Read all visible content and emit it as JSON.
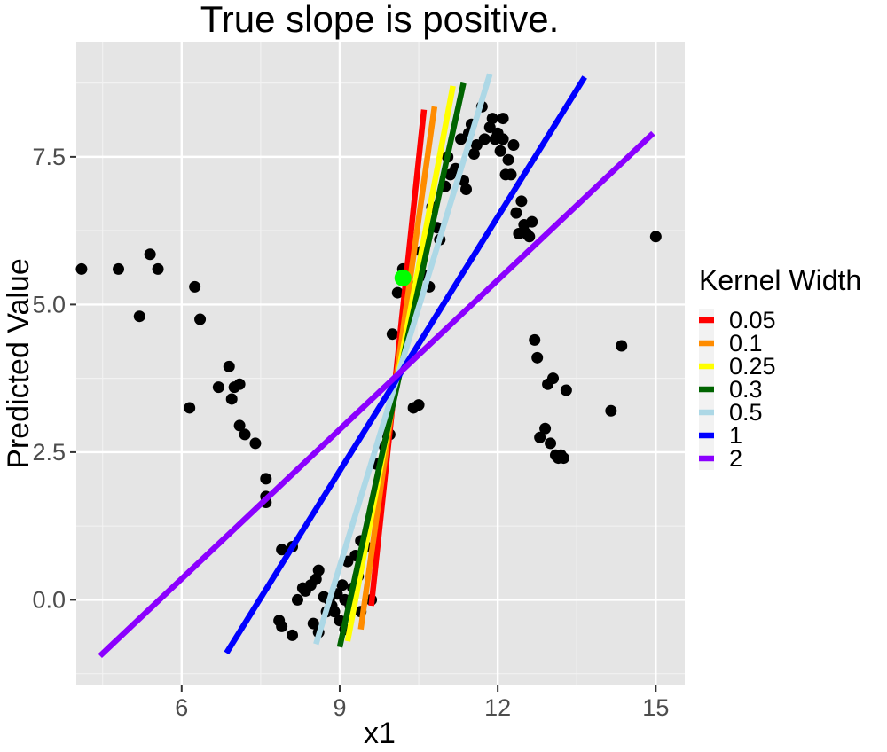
{
  "chart_data": {
    "type": "scatter",
    "title": "True slope is positive.",
    "xlabel": "x1",
    "ylabel": "Predicted Value",
    "xlim": [
      4.0,
      15.55
    ],
    "ylim": [
      -1.45,
      9.45
    ],
    "x_ticks": [
      6,
      9,
      12,
      15
    ],
    "x_tick_labels": [
      "6",
      "9",
      "12",
      "15"
    ],
    "y_ticks": [
      0.0,
      2.5,
      5.0,
      7.5
    ],
    "y_tick_labels": [
      "0.0",
      "2.5",
      "5.0",
      "7.5"
    ],
    "grid": true,
    "legend_position": "right",
    "legend_title": "Kernel Width",
    "points": [
      [
        4.1,
        5.6
      ],
      [
        4.8,
        5.6
      ],
      [
        5.2,
        4.8
      ],
      [
        5.4,
        5.85
      ],
      [
        5.55,
        5.6
      ],
      [
        6.15,
        3.25
      ],
      [
        6.25,
        5.3
      ],
      [
        6.35,
        4.75
      ],
      [
        6.7,
        3.6
      ],
      [
        6.9,
        3.95
      ],
      [
        6.95,
        3.4
      ],
      [
        7.0,
        3.6
      ],
      [
        7.1,
        3.65
      ],
      [
        7.1,
        2.95
      ],
      [
        7.2,
        2.8
      ],
      [
        7.4,
        2.65
      ],
      [
        7.6,
        2.05
      ],
      [
        7.6,
        1.75
      ],
      [
        7.6,
        1.65
      ],
      [
        7.85,
        -0.35
      ],
      [
        7.9,
        -0.45
      ],
      [
        7.9,
        0.85
      ],
      [
        8.1,
        0.9
      ],
      [
        8.1,
        -0.6
      ],
      [
        8.2,
        0.0
      ],
      [
        8.3,
        0.2
      ],
      [
        8.35,
        0.15
      ],
      [
        8.45,
        0.25
      ],
      [
        8.5,
        -0.4
      ],
      [
        8.55,
        0.35
      ],
      [
        8.6,
        0.5
      ],
      [
        8.6,
        -0.55
      ],
      [
        8.7,
        0.05
      ],
      [
        8.75,
        -0.2
      ],
      [
        8.8,
        0.0
      ],
      [
        8.85,
        -0.1
      ],
      [
        8.9,
        -0.2
      ],
      [
        8.95,
        0.1
      ],
      [
        9.0,
        -0.35
      ],
      [
        9.05,
        0.25
      ],
      [
        9.1,
        0.0
      ],
      [
        9.1,
        -0.5
      ],
      [
        9.15,
        0.65
      ],
      [
        9.2,
        -0.1
      ],
      [
        9.25,
        0.2
      ],
      [
        9.3,
        0.75
      ],
      [
        9.35,
        0.4
      ],
      [
        9.4,
        1.0
      ],
      [
        9.4,
        -0.2
      ],
      [
        9.5,
        0.9
      ],
      [
        9.6,
        0.0
      ],
      [
        9.7,
        2.3
      ],
      [
        9.75,
        1.75
      ],
      [
        9.8,
        2.1
      ],
      [
        9.85,
        2.6
      ],
      [
        9.9,
        2.8
      ],
      [
        9.95,
        2.8
      ],
      [
        10.0,
        4.5
      ],
      [
        10.1,
        5.2
      ],
      [
        10.2,
        5.6
      ],
      [
        10.3,
        5.35
      ],
      [
        10.4,
        3.25
      ],
      [
        10.5,
        3.3
      ],
      [
        10.55,
        5.9
      ],
      [
        10.6,
        5.5
      ],
      [
        10.7,
        5.3
      ],
      [
        10.75,
        6.65
      ],
      [
        10.85,
        6.3
      ],
      [
        10.9,
        6.1
      ],
      [
        11.0,
        7.0
      ],
      [
        11.05,
        7.5
      ],
      [
        11.1,
        7.2
      ],
      [
        11.2,
        7.3
      ],
      [
        11.3,
        7.8
      ],
      [
        11.35,
        7.1
      ],
      [
        11.4,
        6.95
      ],
      [
        11.45,
        7.9
      ],
      [
        11.5,
        8.05
      ],
      [
        11.55,
        7.55
      ],
      [
        11.6,
        7.7
      ],
      [
        11.7,
        8.35
      ],
      [
        11.75,
        7.8
      ],
      [
        11.85,
        8.0
      ],
      [
        11.9,
        8.15
      ],
      [
        11.95,
        7.8
      ],
      [
        12.0,
        7.9
      ],
      [
        12.05,
        7.6
      ],
      [
        12.1,
        7.8
      ],
      [
        12.1,
        8.15
      ],
      [
        12.15,
        7.2
      ],
      [
        12.2,
        7.45
      ],
      [
        12.25,
        7.2
      ],
      [
        12.3,
        7.7
      ],
      [
        12.35,
        6.55
      ],
      [
        12.4,
        6.2
      ],
      [
        12.45,
        6.75
      ],
      [
        12.5,
        6.35
      ],
      [
        12.55,
        6.2
      ],
      [
        12.6,
        6.15
      ],
      [
        12.65,
        6.4
      ],
      [
        12.7,
        4.4
      ],
      [
        12.75,
        4.1
      ],
      [
        12.8,
        2.75
      ],
      [
        12.9,
        2.9
      ],
      [
        12.95,
        3.65
      ],
      [
        13.0,
        2.65
      ],
      [
        13.05,
        3.75
      ],
      [
        13.1,
        2.45
      ],
      [
        13.15,
        2.4
      ],
      [
        13.2,
        2.45
      ],
      [
        13.25,
        2.4
      ],
      [
        13.3,
        3.55
      ],
      [
        14.15,
        3.2
      ],
      [
        14.35,
        4.3
      ],
      [
        15.0,
        6.15
      ]
    ],
    "highlight_point": {
      "x": 10.2,
      "y": 5.45,
      "color": "#00ff00"
    },
    "series": [
      {
        "name": "0.05",
        "color": "#ff0000",
        "x": [
          9.6,
          10.6
        ],
        "y": [
          -0.1,
          8.3
        ]
      },
      {
        "name": "0.1",
        "color": "#ff8c00",
        "x": [
          9.4,
          10.8
        ],
        "y": [
          -0.5,
          8.35
        ]
      },
      {
        "name": "0.25",
        "color": "#ffff00",
        "x": [
          9.15,
          11.15
        ],
        "y": [
          -0.7,
          8.7
        ]
      },
      {
        "name": "0.3",
        "color": "#006400",
        "x": [
          9.0,
          11.35
        ],
        "y": [
          -0.8,
          8.75
        ]
      },
      {
        "name": "0.5",
        "color": "#add8e6",
        "x": [
          8.55,
          11.85
        ],
        "y": [
          -0.75,
          8.9
        ]
      },
      {
        "name": "1",
        "color": "#0000ff",
        "x": [
          6.85,
          13.65
        ],
        "y": [
          -0.9,
          8.85
        ]
      },
      {
        "name": "2",
        "color": "#8b00ff",
        "x": [
          4.45,
          14.95
        ],
        "y": [
          -0.95,
          7.9
        ]
      }
    ]
  }
}
